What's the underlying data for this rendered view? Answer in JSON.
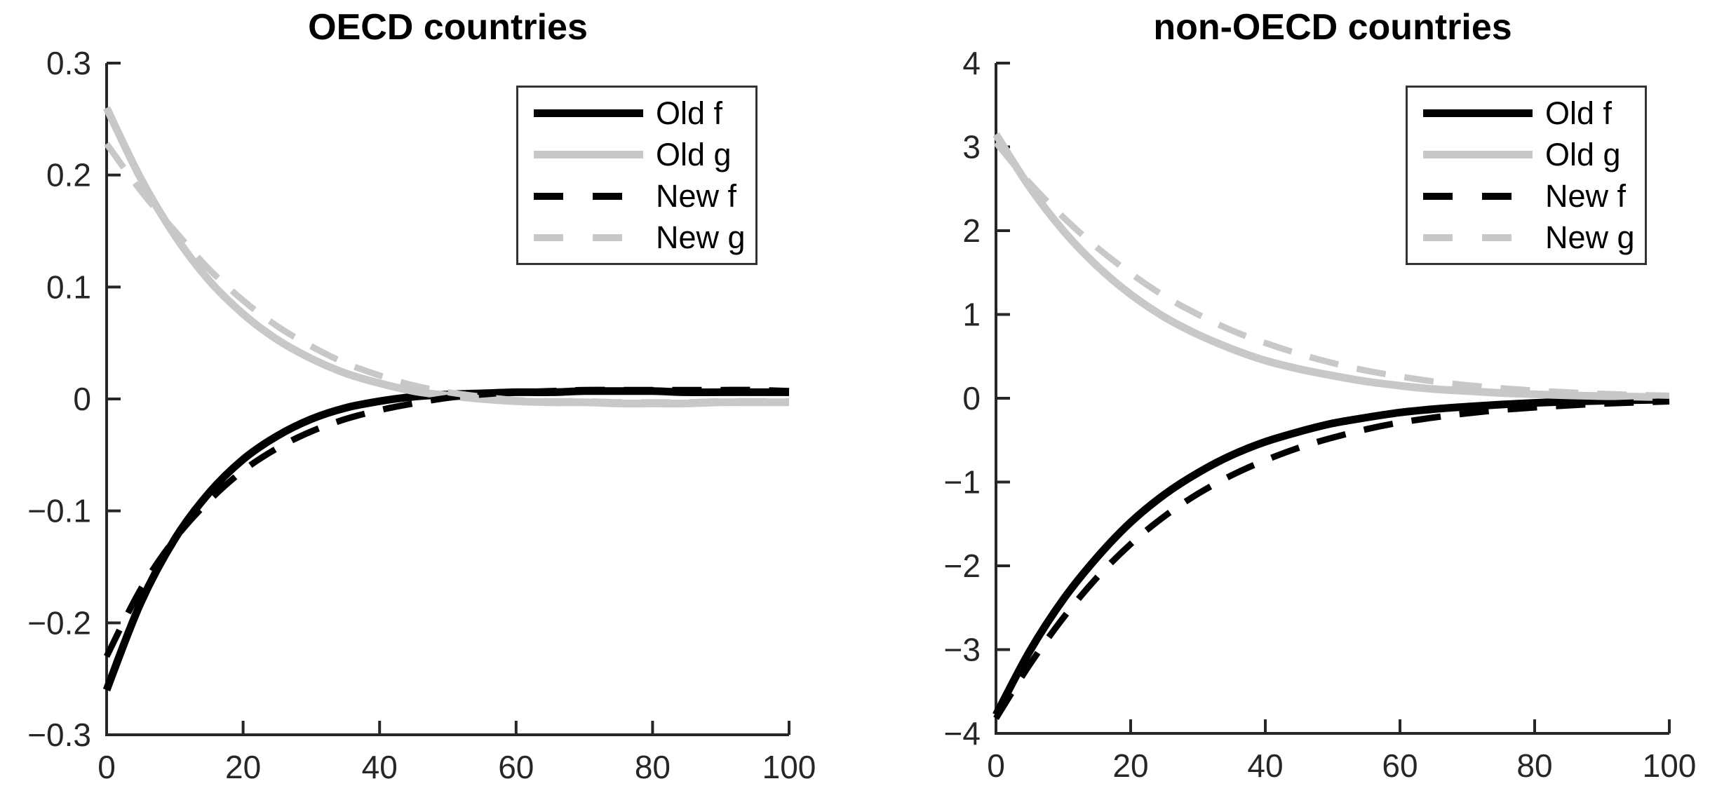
{
  "figure": {
    "background": "#ffffff"
  },
  "colors": {
    "black": "#000000",
    "gray": "#c8c8c8",
    "axis": "#262626",
    "legend_border": "#333333"
  },
  "chart_data": [
    {
      "type": "line",
      "title": "OECD countries",
      "xlabel": "",
      "ylabel": "",
      "xlim": [
        0,
        100
      ],
      "ylim": [
        -0.3,
        0.3
      ],
      "grid": false,
      "legend_position": "northeast",
      "legend": [
        "Old f",
        "Old g",
        "New f",
        "New g"
      ],
      "xticks": {
        "values": [
          0,
          20,
          40,
          60,
          80,
          100
        ],
        "labels": [
          "0",
          "20",
          "40",
          "60",
          "80",
          "100"
        ]
      },
      "yticks": {
        "values": [
          0.3,
          0.2,
          0.1,
          0,
          -0.1,
          -0.2,
          -0.3
        ],
        "labels": [
          "0.3",
          "0.2",
          "0.1",
          "0",
          "−0.1",
          "−0.2",
          "−0.3"
        ]
      },
      "x": [
        0,
        5,
        10,
        15,
        20,
        25,
        30,
        35,
        40,
        45,
        50,
        55,
        60,
        65,
        70,
        75,
        80,
        85,
        90,
        95,
        100
      ],
      "series": [
        {
          "name": "Old f",
          "color": "black",
          "style": "solid",
          "values": [
            -0.26,
            -0.182,
            -0.125,
            -0.084,
            -0.054,
            -0.033,
            -0.018,
            -0.008,
            -0.002,
            0.002,
            0.004,
            0.005,
            0.006,
            0.006,
            0.007,
            0.007,
            0.007,
            0.006,
            0.006,
            0.006,
            0.006
          ]
        },
        {
          "name": "Old g",
          "color": "gray",
          "style": "solid",
          "values": [
            0.26,
            0.197,
            0.146,
            0.106,
            0.076,
            0.053,
            0.036,
            0.023,
            0.014,
            0.007,
            0.003,
            0.0,
            -0.002,
            -0.003,
            -0.003,
            -0.004,
            -0.004,
            -0.004,
            -0.003,
            -0.003,
            -0.003
          ]
        },
        {
          "name": "New f",
          "color": "black",
          "style": "dashed",
          "values": [
            -0.23,
            -0.17,
            -0.125,
            -0.091,
            -0.064,
            -0.044,
            -0.029,
            -0.018,
            -0.01,
            -0.004,
            0.001,
            0.004,
            0.006,
            0.007,
            0.008,
            0.008,
            0.008,
            0.008,
            0.008,
            0.008,
            0.007
          ]
        },
        {
          "name": "New g",
          "color": "gray",
          "style": "dashed",
          "values": [
            0.228,
            0.186,
            0.15,
            0.116,
            0.088,
            0.065,
            0.047,
            0.032,
            0.021,
            0.012,
            0.006,
            0.002,
            -0.001,
            -0.002,
            -0.002,
            -0.003,
            -0.003,
            -0.003,
            -0.002,
            -0.002,
            -0.002
          ]
        }
      ]
    },
    {
      "type": "line",
      "title": "non-OECD countries",
      "xlabel": "",
      "ylabel": "",
      "xlim": [
        0,
        100
      ],
      "ylim": [
        -4,
        4
      ],
      "grid": false,
      "legend_position": "northeast",
      "legend": [
        "Old f",
        "Old g",
        "New f",
        "New g"
      ],
      "xticks": {
        "values": [
          0,
          20,
          40,
          60,
          80,
          100
        ],
        "labels": [
          "0",
          "20",
          "40",
          "60",
          "80",
          "100"
        ]
      },
      "yticks": {
        "values": [
          4,
          3,
          2,
          1,
          0,
          -1,
          -2,
          -3,
          -4
        ],
        "labels": [
          "4",
          "3",
          "2",
          "1",
          "0",
          "−1",
          "−2",
          "−3",
          "−4"
        ]
      },
      "x": [
        0,
        5,
        10,
        15,
        20,
        25,
        30,
        35,
        40,
        45,
        50,
        55,
        60,
        65,
        70,
        75,
        80,
        85,
        90,
        95,
        100
      ],
      "series": [
        {
          "name": "Old f",
          "color": "black",
          "style": "solid",
          "values": [
            -3.78,
            -3.02,
            -2.4,
            -1.9,
            -1.48,
            -1.15,
            -0.89,
            -0.68,
            -0.52,
            -0.4,
            -0.3,
            -0.23,
            -0.17,
            -0.13,
            -0.1,
            -0.075,
            -0.055,
            -0.04,
            -0.03,
            -0.022,
            -0.016
          ]
        },
        {
          "name": "Old g",
          "color": "gray",
          "style": "solid",
          "values": [
            3.15,
            2.52,
            2.0,
            1.58,
            1.24,
            0.97,
            0.76,
            0.59,
            0.45,
            0.35,
            0.27,
            0.2,
            0.15,
            0.11,
            0.085,
            0.063,
            0.047,
            0.034,
            0.025,
            0.018,
            0.013
          ]
        },
        {
          "name": "New f",
          "color": "black",
          "style": "dashed",
          "values": [
            -3.82,
            -3.18,
            -2.62,
            -2.14,
            -1.74,
            -1.41,
            -1.14,
            -0.92,
            -0.74,
            -0.59,
            -0.47,
            -0.37,
            -0.29,
            -0.23,
            -0.18,
            -0.14,
            -0.11,
            -0.085,
            -0.065,
            -0.05,
            -0.038
          ]
        },
        {
          "name": "New g",
          "color": "gray",
          "style": "dashed",
          "values": [
            3.05,
            2.57,
            2.16,
            1.8,
            1.49,
            1.22,
            1.0,
            0.81,
            0.66,
            0.53,
            0.42,
            0.33,
            0.26,
            0.2,
            0.155,
            0.12,
            0.092,
            0.07,
            0.053,
            0.04,
            0.03
          ]
        }
      ]
    }
  ]
}
